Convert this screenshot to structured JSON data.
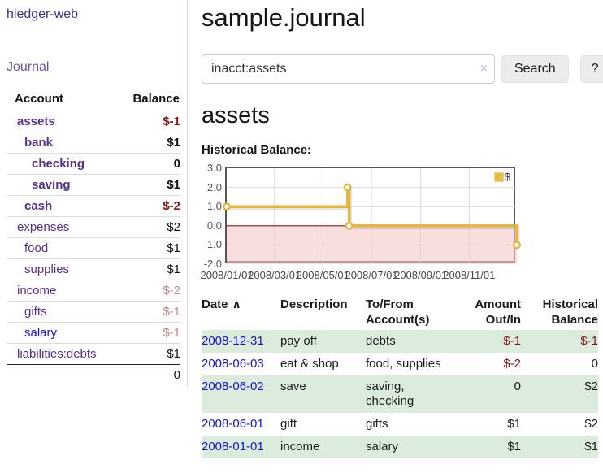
{
  "app": {
    "brand": "hledger-web",
    "nav_journal": "Journal"
  },
  "sidebar": {
    "columns": {
      "account": "Account",
      "balance": "Balance"
    },
    "accounts": [
      {
        "name": "assets",
        "level": 1,
        "balance": "$-1",
        "bold": true
      },
      {
        "name": "bank",
        "level": 2,
        "balance": "$1",
        "bold": true
      },
      {
        "name": "checking",
        "level": 3,
        "balance": "0",
        "bold": true
      },
      {
        "name": "saving",
        "level": 3,
        "balance": "$1",
        "bold": true
      },
      {
        "name": "cash",
        "level": 2,
        "balance": "$-2",
        "bold": true
      },
      {
        "name": "expenses",
        "level": 1,
        "balance": "$2",
        "bold": false
      },
      {
        "name": "food",
        "level": 2,
        "balance": "$1",
        "bold": false
      },
      {
        "name": "supplies",
        "level": 2,
        "balance": "$1",
        "bold": false
      },
      {
        "name": "income",
        "level": 1,
        "balance": "$-2",
        "bold": false,
        "muted": true
      },
      {
        "name": "gifts",
        "level": 2,
        "balance": "$-1",
        "bold": false,
        "muted": true
      },
      {
        "name": "salary",
        "level": 2,
        "balance": "$-1",
        "bold": false,
        "muted": true,
        "link_blue": true
      },
      {
        "name": "liabilities:debts",
        "level": 1,
        "balance": "$1",
        "bold": false
      }
    ],
    "total": "0"
  },
  "header": {
    "title": "sample.journal"
  },
  "search": {
    "value": "inacct:assets",
    "clear_label": "×",
    "button_label": "Search",
    "help_label": "?"
  },
  "account_page": {
    "heading": "assets",
    "chart_label": "Historical Balance:"
  },
  "chart_data": {
    "type": "line",
    "step": true,
    "title": "Historical Balance:",
    "series": [
      {
        "name": "$",
        "color": "#e4b63f",
        "points": [
          [
            "2008/01/01",
            1.0
          ],
          [
            "2008/06/01",
            2.0
          ],
          [
            "2008/06/03",
            0.0
          ],
          [
            "2008/12/31",
            -1.0
          ]
        ]
      }
    ],
    "xrange": [
      "2008/01/01",
      "2008/12/31"
    ],
    "xticks": [
      "2008/01/01",
      "2008/03/01",
      "2008/05/01",
      "2008/07/01",
      "2008/09/01",
      "2008/11/01"
    ],
    "yticks": [
      "3.0",
      "2.0",
      "1.0",
      "0.0",
      "-1.0",
      "-2.0"
    ],
    "ylim": [
      -2,
      3
    ],
    "grid": true,
    "legend_position": "top-right",
    "negative_region_color": "#f6c9c9",
    "zero_line_color": "#a01818"
  },
  "register": {
    "sort_icon": "∧",
    "headers": {
      "date": "Date",
      "description": "Description",
      "tofrom_line1": "To/From",
      "tofrom_line2": "Account(s)",
      "amount_line1": "Amount",
      "amount_line2": "Out/In",
      "hist_line1": "Historical",
      "hist_line2": "Balance"
    },
    "rows": [
      {
        "date": "2008-12-31",
        "description": "pay off",
        "accounts": "debts",
        "amount": "$-1",
        "balance": "$-1"
      },
      {
        "date": "2008-06-03",
        "description": "eat & shop",
        "accounts": "food, supplies",
        "amount": "$-2",
        "balance": "0"
      },
      {
        "date": "2008-06-02",
        "description": "save",
        "accounts": "saving,\nchecking",
        "amount": "0",
        "balance": "$2"
      },
      {
        "date": "2008-06-01",
        "description": "gift",
        "accounts": "gifts",
        "amount": "$1",
        "balance": "$2"
      },
      {
        "date": "2008-01-01",
        "description": "income",
        "accounts": "salary",
        "amount": "$1",
        "balance": "$1"
      }
    ]
  }
}
